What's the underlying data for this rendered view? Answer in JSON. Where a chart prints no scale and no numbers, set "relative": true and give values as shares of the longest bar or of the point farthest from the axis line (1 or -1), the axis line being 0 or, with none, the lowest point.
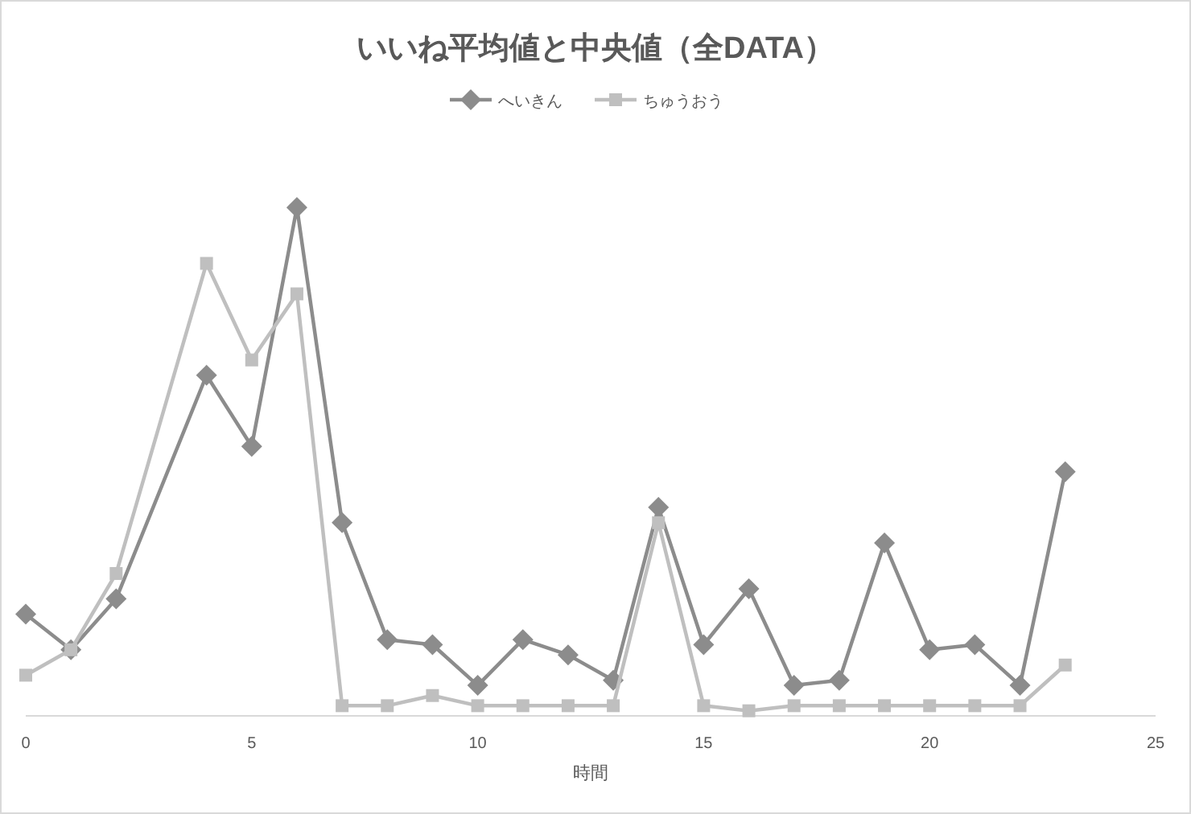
{
  "chart_data": {
    "type": "line",
    "title": "いいね平均値と中央値（全DATA）",
    "xlabel": "時間",
    "relative": true,
    "legend": "top",
    "grid": false,
    "xlim": [
      0,
      25
    ],
    "xticks": [
      0,
      5,
      10,
      15,
      20,
      25
    ],
    "x": [
      0,
      1,
      2,
      4,
      5,
      6,
      7,
      8,
      9,
      10,
      11,
      12,
      13,
      14,
      15,
      16,
      17,
      18,
      19,
      20,
      21,
      22,
      23
    ],
    "series": [
      {
        "name": "へいきん",
        "color": "#8c8c8c",
        "marker": "diamond",
        "values": [
          0.2,
          0.13,
          0.23,
          0.67,
          0.53,
          1,
          0.38,
          0.15,
          0.14,
          0.06,
          0.15,
          0.12,
          0.07,
          0.41,
          0.14,
          0.25,
          0.06,
          0.07,
          0.34,
          0.13,
          0.14,
          0.06,
          0.48
        ]
      },
      {
        "name": "ちゅうおう",
        "color": "#bfbfbf",
        "marker": "square",
        "values": [
          0.08,
          0.13,
          0.28,
          0.89,
          0.7,
          0.83,
          0.02,
          0.02,
          0.04,
          0.02,
          0.02,
          0.02,
          0.02,
          0.38,
          0.02,
          0.01,
          0.02,
          0.02,
          0.02,
          0.02,
          0.02,
          0.02,
          0.1
        ]
      }
    ]
  }
}
